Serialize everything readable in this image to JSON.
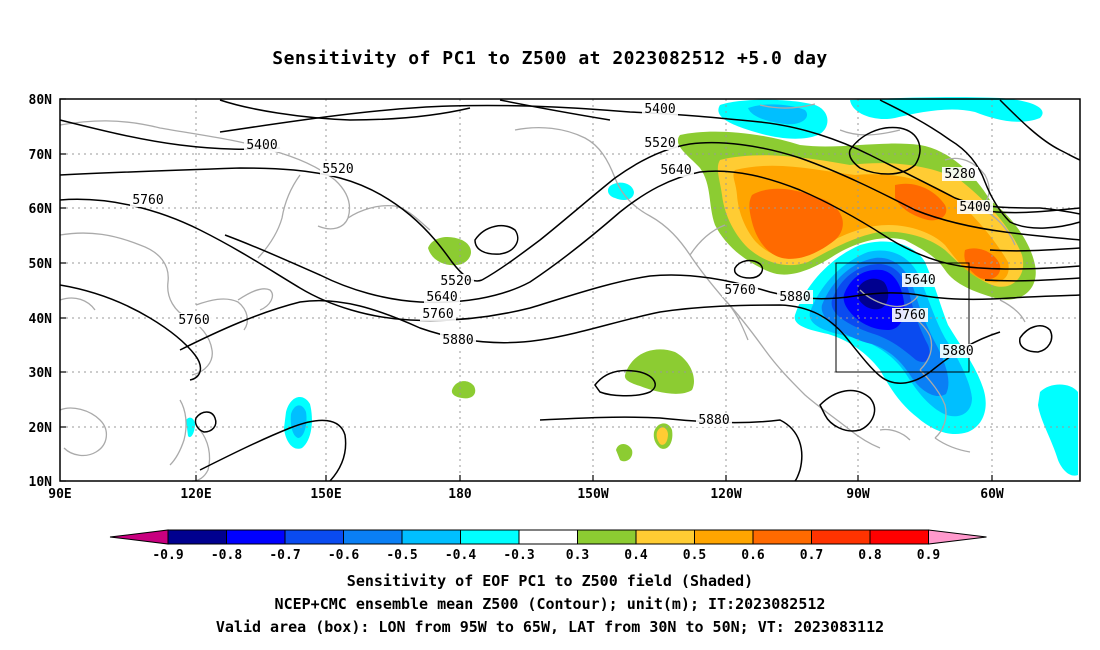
{
  "title": "Sensitivity of PC1 to Z500 at 2023082512 +5.0 day",
  "map": {
    "lat_ticks": [
      "80N",
      "70N",
      "60N",
      "50N",
      "40N",
      "30N",
      "20N",
      "10N"
    ],
    "lon_ticks": [
      "90E",
      "120E",
      "150E",
      "180",
      "150W",
      "120W",
      "90W",
      "60W"
    ],
    "contour_labels": [
      {
        "text": "5400",
        "level": 5400
      },
      {
        "text": "5400",
        "level": 5400
      },
      {
        "text": "5400",
        "level": 5400
      },
      {
        "text": "5520",
        "level": 5520
      },
      {
        "text": "5520",
        "level": 5520
      },
      {
        "text": "5520",
        "level": 5520
      },
      {
        "text": "5640",
        "level": 5640
      },
      {
        "text": "5640",
        "level": 5640
      },
      {
        "text": "5640",
        "level": 5640
      },
      {
        "text": "5760",
        "level": 5760
      },
      {
        "text": "5760",
        "level": 5760
      },
      {
        "text": "5760",
        "level": 5760
      },
      {
        "text": "5760",
        "level": 5760
      },
      {
        "text": "5760",
        "level": 5760
      },
      {
        "text": "5880",
        "level": 5880
      },
      {
        "text": "5880",
        "level": 5880
      },
      {
        "text": "5880",
        "level": 5880
      },
      {
        "text": "5880",
        "level": 5880
      },
      {
        "text": "5280",
        "level": 5280
      }
    ],
    "valid_box": {
      "lon_from": "95W",
      "lon_to": "65W",
      "lat_from": "30N",
      "lat_to": "50N"
    }
  },
  "colorbar": {
    "labels": [
      "-0.9",
      "-0.8",
      "-0.7",
      "-0.6",
      "-0.5",
      "-0.4",
      "-0.3",
      "0.3",
      "0.4",
      "0.5",
      "0.6",
      "0.7",
      "0.8",
      "0.9"
    ],
    "colors": [
      "#00008f",
      "#0000ff",
      "#0a4bf0",
      "#0a7ff5",
      "#00bfff",
      "#00ffff",
      "#ffffff",
      "#8ccc32",
      "#ffcc33",
      "#ffa500",
      "#ff6a00",
      "#ff3300",
      "#ff0000"
    ],
    "low_end_color": "#c8007f",
    "high_end_color": "#ff99cc"
  },
  "caption": [
    "Sensitivity of EOF PC1 to Z500 field (Shaded)",
    "NCEP+CMC ensemble mean Z500 (Contour); unit(m); IT:2023082512",
    "Valid area (box): LON from 95W to 65W, LAT from 30N to 50N; VT: 2023083112"
  ]
}
